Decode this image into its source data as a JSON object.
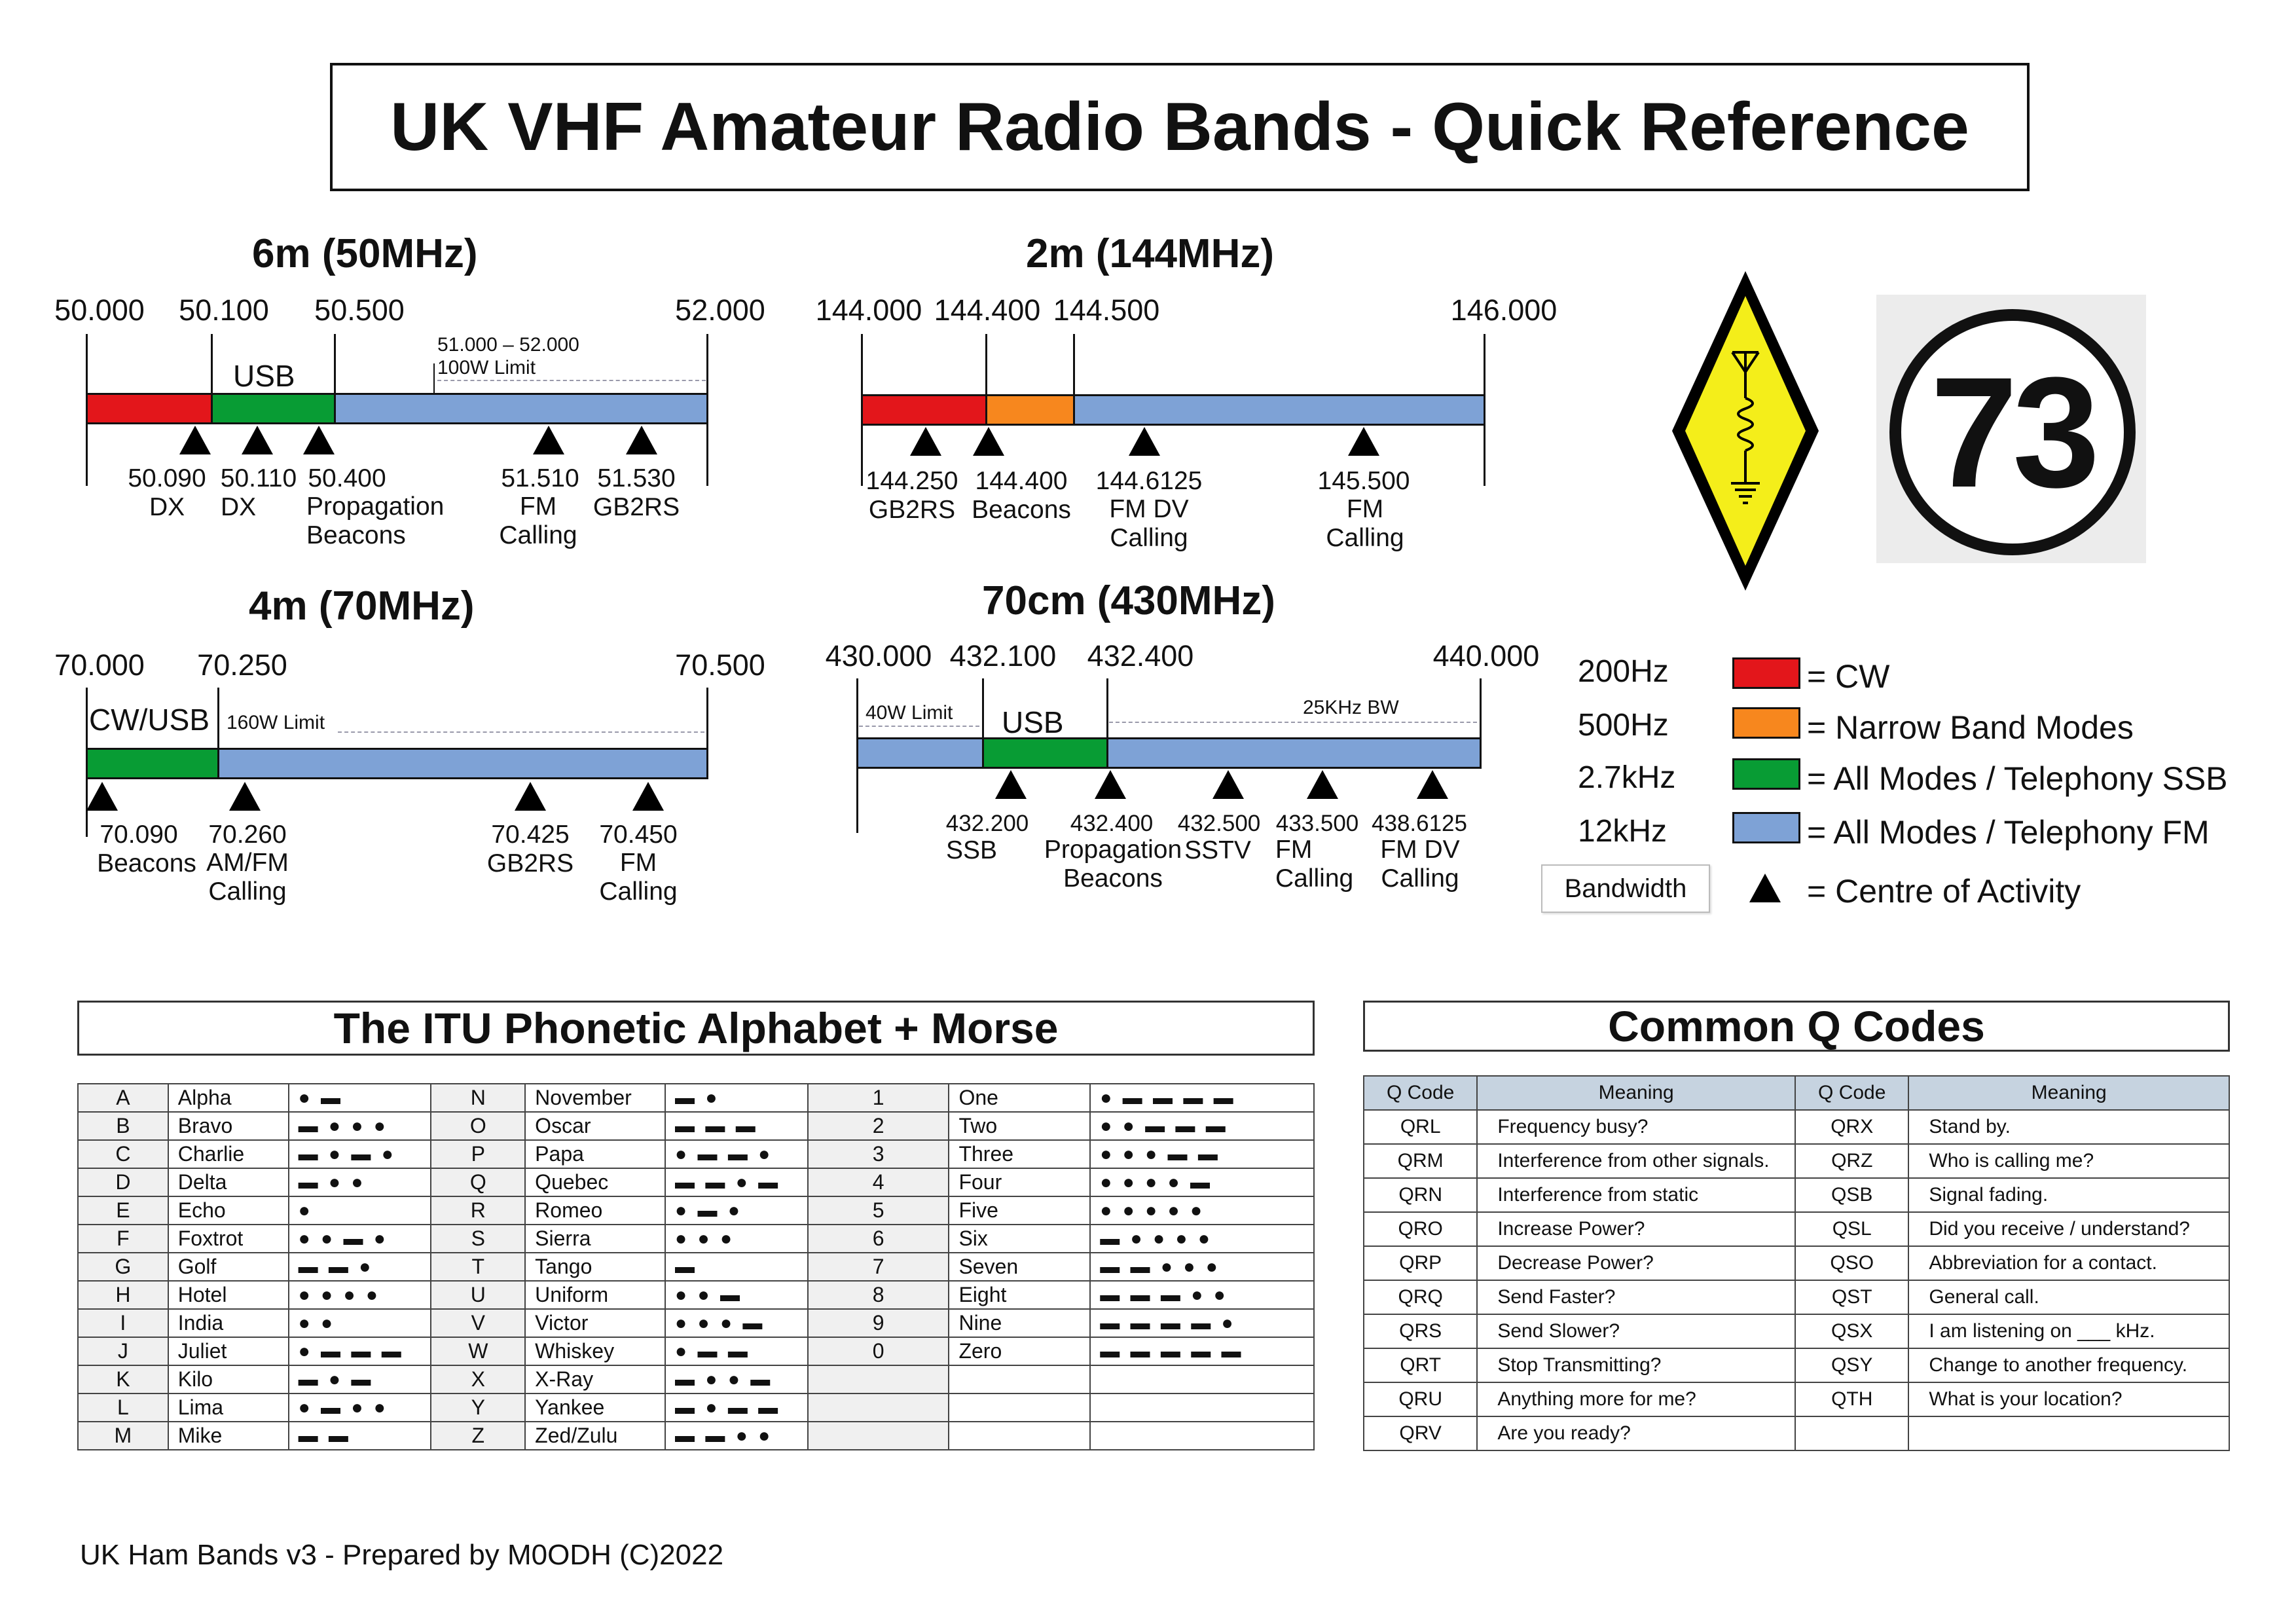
{
  "title": "UK VHF Amateur Radio Bands - Quick Reference",
  "bands": {
    "six_m": {
      "title": "6m (50MHz)",
      "edges": [
        "50.000",
        "50.100",
        "50.500",
        "52.000"
      ],
      "note_range": "51.000 – 52.000",
      "note_limit": "100W Limit",
      "segment_label": "USB",
      "markers": [
        {
          "freq": "50.090",
          "label": "DX"
        },
        {
          "freq": "50.110",
          "label": "DX"
        },
        {
          "freq": "50.400",
          "label": "Propagation\nBeacons"
        },
        {
          "freq": "51.510",
          "label": "FM\nCalling"
        },
        {
          "freq": "51.530",
          "label": "GB2RS"
        }
      ]
    },
    "two_m": {
      "title": "2m (144MHz)",
      "edges": [
        "144.000",
        "144.400",
        "144.500",
        "146.000"
      ],
      "markers": [
        {
          "freq": "144.250",
          "label": "GB2RS"
        },
        {
          "freq": "144.400",
          "label": "Beacons"
        },
        {
          "freq": "144.6125",
          "label": "FM DV\nCalling"
        },
        {
          "freq": "145.500",
          "label": "FM\nCalling"
        }
      ]
    },
    "four_m": {
      "title": "4m (70MHz)",
      "edges": [
        "70.000",
        "70.250",
        "70.500"
      ],
      "segment_label": "CW/USB",
      "note_limit": "160W Limit",
      "markers": [
        {
          "freq": "70.090",
          "label": "Beacons"
        },
        {
          "freq": "70.260",
          "label": "AM/FM\nCalling"
        },
        {
          "freq": "70.425",
          "label": "GB2RS"
        },
        {
          "freq": "70.450",
          "label": "FM\nCalling"
        }
      ]
    },
    "seventy_cm": {
      "title": "70cm (430MHz)",
      "edges": [
        "430.000",
        "432.100",
        "432.400",
        "440.000"
      ],
      "note_limit": "40W Limit",
      "note_bw": "25KHz BW",
      "segment_label": "USB",
      "markers": [
        {
          "freq": "432.200",
          "label": "SSB"
        },
        {
          "freq": "432.400",
          "label": "Propagation\nBeacons"
        },
        {
          "freq": "432.500",
          "label": "SSTV"
        },
        {
          "freq": "433.500",
          "label": "FM\nCalling"
        },
        {
          "freq": "438.6125",
          "label": "FM DV\nCalling"
        }
      ]
    }
  },
  "legend": {
    "items": [
      {
        "bandwidth": "200Hz",
        "text": "= CW",
        "color": "#e3161b"
      },
      {
        "bandwidth": "500Hz",
        "text": "= Narrow Band Modes",
        "color": "#f7871e"
      },
      {
        "bandwidth": "2.7kHz",
        "text": "= All Modes / Telephony SSB",
        "color": "#089c34"
      },
      {
        "bandwidth": "12kHz",
        "text": "= All Modes / Telephony FM",
        "color": "#7ea2d6"
      }
    ],
    "bandwidth_label": "Bandwidth",
    "centre_text": "= Centre of Activity"
  },
  "logos": {
    "rsgb_icon": "diamond-antenna-icon",
    "badge_text": "73"
  },
  "phonetic": {
    "title": "The ITU Phonetic Alphabet + Morse",
    "rows": [
      [
        "A",
        "Alpha",
        "● ▬",
        "N",
        "November",
        "▬ ●",
        "1",
        "One",
        "● ▬ ▬ ▬ ▬"
      ],
      [
        "B",
        "Bravo",
        "▬ ● ● ●",
        "O",
        "Oscar",
        "▬ ▬ ▬",
        "2",
        "Two",
        "● ● ▬ ▬ ▬"
      ],
      [
        "C",
        "Charlie",
        "▬ ● ▬ ●",
        "P",
        "Papa",
        "● ▬ ▬ ●",
        "3",
        "Three",
        "● ● ● ▬ ▬"
      ],
      [
        "D",
        "Delta",
        "▬ ● ●",
        "Q",
        "Quebec",
        "▬ ▬ ● ▬",
        "4",
        "Four",
        "● ● ● ● ▬"
      ],
      [
        "E",
        "Echo",
        "●",
        "R",
        "Romeo",
        "● ▬ ●",
        "5",
        "Five",
        "● ● ● ● ●"
      ],
      [
        "F",
        "Foxtrot",
        "● ● ▬ ●",
        "S",
        "Sierra",
        "● ● ●",
        "6",
        "Six",
        "▬ ● ● ● ●"
      ],
      [
        "G",
        "Golf",
        "▬ ▬ ●",
        "T",
        "Tango",
        "▬",
        "7",
        "Seven",
        "▬ ▬ ● ● ●"
      ],
      [
        "H",
        "Hotel",
        "● ● ● ●",
        "U",
        "Uniform",
        "● ● ▬",
        "8",
        "Eight",
        "▬ ▬ ▬ ● ●"
      ],
      [
        "I",
        "India",
        "● ●",
        "V",
        "Victor",
        "● ● ● ▬",
        "9",
        "Nine",
        "▬ ▬ ▬ ▬ ●"
      ],
      [
        "J",
        "Juliet",
        "● ▬ ▬ ▬",
        "W",
        "Whiskey",
        "● ▬ ▬",
        "0",
        "Zero",
        "▬ ▬ ▬ ▬ ▬"
      ],
      [
        "K",
        "Kilo",
        "▬ ● ▬",
        "X",
        "X-Ray",
        "▬ ● ● ▬",
        "",
        "",
        ""
      ],
      [
        "L",
        "Lima",
        "● ▬ ● ●",
        "Y",
        "Yankee",
        "▬ ● ▬ ▬",
        "",
        "",
        ""
      ],
      [
        "M",
        "Mike",
        "▬ ▬",
        "Z",
        "Zed/Zulu",
        "▬ ▬ ● ●",
        "",
        "",
        ""
      ]
    ]
  },
  "qcodes": {
    "title": "Common Q Codes",
    "headers": [
      "Q Code",
      "Meaning",
      "Q Code",
      "Meaning"
    ],
    "rows": [
      [
        "QRL",
        "Frequency busy?",
        "QRX",
        "Stand by."
      ],
      [
        "QRM",
        "Interference from other signals.",
        "QRZ",
        "Who is calling me?"
      ],
      [
        "QRN",
        "Interference from static",
        "QSB",
        "Signal fading."
      ],
      [
        "QRO",
        "Increase Power?",
        "QSL",
        "Did you receive / understand?"
      ],
      [
        "QRP",
        "Decrease Power?",
        "QSO",
        "Abbreviation for a contact."
      ],
      [
        "QRQ",
        "Send Faster?",
        "QST",
        "General call."
      ],
      [
        "QRS",
        "Send Slower?",
        "QSX",
        "I am listening on ___ kHz."
      ],
      [
        "QRT",
        "Stop Transmitting?",
        "QSY",
        "Change to another frequency."
      ],
      [
        "QRU",
        "Anything more for me?",
        "QTH",
        "What is your location?"
      ],
      [
        "QRV",
        "Are you ready?",
        "",
        ""
      ]
    ]
  },
  "footer": "UK Ham Bands v3 - Prepared by M0ODH (C)2022"
}
